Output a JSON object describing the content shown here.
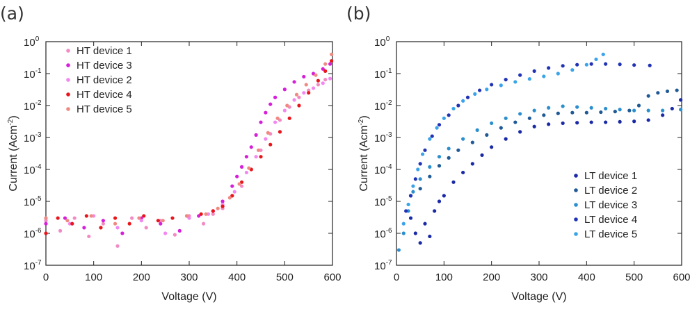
{
  "figure": {
    "panels": [
      "(a)",
      "(b)"
    ]
  },
  "chart_data": [
    {
      "type": "scatter",
      "panel": "(a)",
      "title": "",
      "xlabel": "Voltage (V)",
      "ylabel": "Current (Acm",
      "ylabel_superscript": "-2",
      "ylabel_suffix": ")",
      "xlim": [
        0,
        600
      ],
      "ylim": [
        1e-07,
        1
      ],
      "yscale": "log",
      "x_ticks": [
        "0",
        "100",
        "200",
        "300",
        "400",
        "500",
        "600"
      ],
      "y_ticks": [
        {
          "base": "10",
          "exp": "-7"
        },
        {
          "base": "10",
          "exp": "-6"
        },
        {
          "base": "10",
          "exp": "-5"
        },
        {
          "base": "10",
          "exp": "-4"
        },
        {
          "base": "10",
          "exp": "-3"
        },
        {
          "base": "10",
          "exp": "-2"
        },
        {
          "base": "10",
          "exp": "-1"
        },
        {
          "base": "10",
          "exp": "0"
        }
      ],
      "grid": false,
      "legend_position": "top-left",
      "series": [
        {
          "name": "HT device 1",
          "color": "#f28bc4",
          "points": [
            [
              0,
              2.5e-06
            ],
            [
              30,
              1.2e-06
            ],
            [
              60,
              3e-06
            ],
            [
              90,
              8e-07
            ],
            [
              120,
              2e-06
            ],
            [
              150,
              4e-07
            ],
            [
              180,
              3e-06
            ],
            [
              210,
              1.5e-06
            ],
            [
              240,
              2.5e-06
            ],
            [
              270,
              9e-07
            ],
            [
              300,
              3.5e-06
            ],
            [
              330,
              2e-06
            ],
            [
              350,
              4e-06
            ],
            [
              370,
              6e-06
            ],
            [
              390,
              1.5e-05
            ],
            [
              410,
              3e-05
            ],
            [
              430,
              0.0001
            ],
            [
              450,
              0.0004
            ],
            [
              470,
              0.0013
            ],
            [
              490,
              0.0035
            ],
            [
              510,
              0.009
            ],
            [
              530,
              0.018
            ],
            [
              550,
              0.03
            ],
            [
              570,
              0.045
            ],
            [
              585,
              0.065
            ]
          ]
        },
        {
          "name": "HT device 3",
          "color": "#d51fd8",
          "points": [
            [
              0,
              2e-06
            ],
            [
              40,
              3e-06
            ],
            [
              80,
              1.5e-06
            ],
            [
              120,
              2.5e-06
            ],
            [
              160,
              1e-06
            ],
            [
              200,
              3e-06
            ],
            [
              240,
              2e-06
            ],
            [
              280,
              1.2e-06
            ],
            [
              320,
              3.5e-06
            ],
            [
              350,
              5e-06
            ],
            [
              370,
              1e-05
            ],
            [
              390,
              3e-05
            ],
            [
              400,
              6e-05
            ],
            [
              410,
              0.00012
            ],
            [
              420,
              0.00025
            ],
            [
              430,
              0.0005
            ],
            [
              440,
              0.0012
            ],
            [
              450,
              0.003
            ],
            [
              460,
              0.006
            ],
            [
              470,
              0.011
            ],
            [
              480,
              0.018
            ],
            [
              500,
              0.032
            ],
            [
              520,
              0.055
            ],
            [
              540,
              0.08
            ],
            [
              560,
              0.1
            ],
            [
              580,
              0.14
            ],
            [
              595,
              0.2
            ]
          ]
        },
        {
          "name": "HT device 2",
          "color": "#f287f0",
          "points": [
            [
              0,
              3e-06
            ],
            [
              50,
              2e-06
            ],
            [
              100,
              3.5e-06
            ],
            [
              150,
              1.5e-06
            ],
            [
              200,
              2.5e-06
            ],
            [
              250,
              1e-06
            ],
            [
              300,
              3e-06
            ],
            [
              340,
              4e-06
            ],
            [
              370,
              8e-06
            ],
            [
              395,
              2e-05
            ],
            [
              420,
              8e-05
            ],
            [
              440,
              0.00025
            ],
            [
              460,
              0.0009
            ],
            [
              480,
              0.003
            ],
            [
              500,
              0.007
            ],
            [
              520,
              0.015
            ],
            [
              540,
              0.025
            ],
            [
              560,
              0.035
            ],
            [
              580,
              0.05
            ],
            [
              595,
              0.07
            ]
          ]
        },
        {
          "name": "HT device 4",
          "color": "#e8161b",
          "points": [
            [
              0,
              1e-06
            ],
            [
              25,
              3e-06
            ],
            [
              55,
              2e-06
            ],
            [
              85,
              3.5e-06
            ],
            [
              115,
              1.5e-06
            ],
            [
              145,
              3e-06
            ],
            [
              175,
              2e-06
            ],
            [
              205,
              3.5e-06
            ],
            [
              235,
              2.5e-06
            ],
            [
              265,
              3e-06
            ],
            [
              295,
              3.5e-06
            ],
            [
              325,
              4e-06
            ],
            [
              350,
              5e-06
            ],
            [
              370,
              7e-06
            ],
            [
              390,
              1.5e-05
            ],
            [
              410,
              4e-05
            ],
            [
              430,
              0.0001
            ],
            [
              450,
              0.00025
            ],
            [
              470,
              0.0006
            ],
            [
              490,
              0.0015
            ],
            [
              510,
              0.004
            ],
            [
              530,
              0.01
            ],
            [
              550,
              0.025
            ],
            [
              570,
              0.06
            ],
            [
              585,
              0.12
            ],
            [
              598,
              0.25
            ]
          ]
        },
        {
          "name": "HT device 5",
          "color": "#ef8a82",
          "points": [
            [
              0,
              3e-06
            ],
            [
              45,
              2.5e-06
            ],
            [
              95,
              3.5e-06
            ],
            [
              145,
              2e-06
            ],
            [
              195,
              3e-06
            ],
            [
              245,
              2.5e-06
            ],
            [
              295,
              3.5e-06
            ],
            [
              335,
              4e-06
            ],
            [
              360,
              6e-06
            ],
            [
              385,
              1.3e-05
            ],
            [
              405,
              3.5e-05
            ],
            [
              425,
              0.00011
            ],
            [
              445,
              0.0004
            ],
            [
              465,
              0.0014
            ],
            [
              485,
              0.004
            ],
            [
              505,
              0.01
            ],
            [
              525,
              0.022
            ],
            [
              545,
              0.045
            ],
            [
              565,
              0.09
            ],
            [
              585,
              0.2
            ],
            [
              598,
              0.4
            ]
          ]
        }
      ]
    },
    {
      "type": "scatter",
      "panel": "(b)",
      "title": "",
      "xlabel": "Voltage (V)",
      "ylabel": "Current (Acm",
      "ylabel_superscript": "-2",
      "ylabel_suffix": ")",
      "xlim": [
        0,
        600
      ],
      "ylim": [
        1e-07,
        1
      ],
      "yscale": "log",
      "x_ticks": [
        "0",
        "100",
        "200",
        "300",
        "400",
        "500",
        "600"
      ],
      "y_ticks": [
        {
          "base": "10",
          "exp": "-7"
        },
        {
          "base": "10",
          "exp": "-6"
        },
        {
          "base": "10",
          "exp": "-5"
        },
        {
          "base": "10",
          "exp": "-4"
        },
        {
          "base": "10",
          "exp": "-3"
        },
        {
          "base": "10",
          "exp": "-2"
        },
        {
          "base": "10",
          "exp": "-1"
        },
        {
          "base": "10",
          "exp": "0"
        }
      ],
      "grid": false,
      "legend_position": "bottom-right",
      "series": [
        {
          "name": "LT device 1",
          "color": "#1a2aa6",
          "points": [
            [
              30,
              3e-06
            ],
            [
              40,
              1e-06
            ],
            [
              50,
              5e-07
            ],
            [
              60,
              2e-06
            ],
            [
              70,
              8e-07
            ],
            [
              80,
              5e-06
            ],
            [
              90,
              1e-05
            ],
            [
              100,
              1.5e-05
            ],
            [
              120,
              4e-05
            ],
            [
              140,
              8e-05
            ],
            [
              160,
              0.00015
            ],
            [
              180,
              0.00028
            ],
            [
              200,
              0.0005
            ],
            [
              230,
              0.0009
            ],
            [
              260,
              0.0015
            ],
            [
              290,
              0.0022
            ],
            [
              320,
              0.0026
            ],
            [
              350,
              0.0028
            ],
            [
              380,
              0.0029
            ],
            [
              410,
              0.003
            ],
            [
              440,
              0.003
            ],
            [
              470,
              0.0031
            ],
            [
              500,
              0.0032
            ],
            [
              530,
              0.0035
            ],
            [
              560,
              0.005
            ],
            [
              580,
              0.008
            ],
            [
              598,
              0.015
            ]
          ]
        },
        {
          "name": "LT device 2",
          "color": "#1f5a96",
          "points": [
            [
              30,
              1.5e-05
            ],
            [
              50,
              2.5e-05
            ],
            [
              70,
              6e-05
            ],
            [
              90,
              0.00013
            ],
            [
              110,
              0.00023
            ],
            [
              130,
              0.0004
            ],
            [
              160,
              0.0007
            ],
            [
              190,
              0.0012
            ],
            [
              220,
              0.002
            ],
            [
              250,
              0.003
            ],
            [
              280,
              0.004
            ],
            [
              310,
              0.005
            ],
            [
              340,
              0.0057
            ],
            [
              370,
              0.006
            ],
            [
              400,
              0.006
            ],
            [
              430,
              0.0062
            ],
            [
              460,
              0.0065
            ],
            [
              490,
              0.007
            ],
            [
              510,
              0.01
            ],
            [
              530,
              0.02
            ],
            [
              550,
              0.025
            ],
            [
              570,
              0.028
            ],
            [
              590,
              0.03
            ]
          ]
        },
        {
          "name": "LT device 3",
          "color": "#2b8fcf",
          "points": [
            [
              5,
              3e-07
            ],
            [
              15,
              1e-06
            ],
            [
              25,
              5e-06
            ],
            [
              35,
              2e-05
            ],
            [
              50,
              5e-05
            ],
            [
              70,
              0.00012
            ],
            [
              90,
              0.00025
            ],
            [
              110,
              0.00045
            ],
            [
              140,
              0.0009
            ],
            [
              170,
              0.0017
            ],
            [
              200,
              0.0028
            ],
            [
              230,
              0.004
            ],
            [
              260,
              0.0055
            ],
            [
              290,
              0.007
            ],
            [
              320,
              0.0085
            ],
            [
              350,
              0.0095
            ],
            [
              380,
              0.009
            ],
            [
              410,
              0.0085
            ],
            [
              440,
              0.008
            ],
            [
              470,
              0.0075
            ],
            [
              500,
              0.007
            ],
            [
              530,
              0.007
            ],
            [
              560,
              0.007
            ],
            [
              598,
              0.0075
            ]
          ]
        },
        {
          "name": "LT device 4",
          "color": "#2133b5",
          "points": [
            [
              20,
              5e-06
            ],
            [
              30,
              1.5e-05
            ],
            [
              40,
              5e-05
            ],
            [
              50,
              0.00015
            ],
            [
              60,
              0.0004
            ],
            [
              75,
              0.0011
            ],
            [
              90,
              0.0025
            ],
            [
              110,
              0.005
            ],
            [
              130,
              0.01
            ],
            [
              150,
              0.018
            ],
            [
              175,
              0.03
            ],
            [
              200,
              0.045
            ],
            [
              230,
              0.065
            ],
            [
              260,
              0.09
            ],
            [
              290,
              0.12
            ],
            [
              320,
              0.15
            ],
            [
              350,
              0.175
            ],
            [
              380,
              0.19
            ],
            [
              410,
              0.2
            ],
            [
              440,
              0.2
            ],
            [
              470,
              0.195
            ],
            [
              500,
              0.185
            ],
            [
              533,
              0.18
            ]
          ]
        },
        {
          "name": "LT device 5",
          "color": "#3aa3ea",
          "points": [
            [
              15,
              2e-06
            ],
            [
              25,
              8e-06
            ],
            [
              35,
              3e-05
            ],
            [
              45,
              0.0001
            ],
            [
              55,
              0.0003
            ],
            [
              70,
              0.0009
            ],
            [
              85,
              0.002
            ],
            [
              100,
              0.004
            ],
            [
              120,
              0.008
            ],
            [
              140,
              0.014
            ],
            [
              165,
              0.023
            ],
            [
              190,
              0.032
            ],
            [
              220,
              0.043
            ],
            [
              250,
              0.055
            ],
            [
              280,
              0.068
            ],
            [
              310,
              0.082
            ],
            [
              340,
              0.1
            ],
            [
              370,
              0.13
            ],
            [
              400,
              0.19
            ],
            [
              420,
              0.28
            ],
            [
              435,
              0.4
            ]
          ]
        }
      ]
    }
  ]
}
